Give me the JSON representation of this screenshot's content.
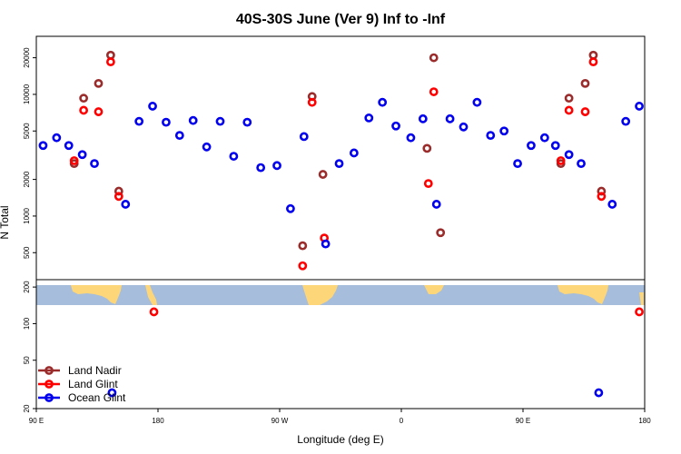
{
  "chart_data": {
    "type": "scatter",
    "title": "40S-30S June (Ver 9)   Inf to -Inf",
    "xlabel": "Longitude (deg E)",
    "ylabel": "N Total",
    "x_ticks": [
      {
        "v": 90,
        "label": "90 E"
      },
      {
        "v": 180,
        "label": "180"
      },
      {
        "v": 270,
        "label": "90 W"
      },
      {
        "v": 360,
        "label": "0"
      },
      {
        "v": 450,
        "label": "90 E"
      },
      {
        "v": 540,
        "label": "180"
      }
    ],
    "xlim": [
      90,
      540
    ],
    "upper_panel": {
      "scale": "log",
      "ylim": [
        300,
        30000
      ],
      "y_ticks": [
        {
          "v": 500,
          "label": "500"
        },
        {
          "v": 1000,
          "label": "1000"
        },
        {
          "v": 2000,
          "label": "2000"
        },
        {
          "v": 5000,
          "label": "5000"
        },
        {
          "v": 10000,
          "label": "10000"
        },
        {
          "v": 20000,
          "label": "20000"
        }
      ]
    },
    "lower_panel": {
      "scale": "log",
      "ylim": [
        20,
        230
      ],
      "y_ticks": [
        {
          "v": 20,
          "label": "20"
        },
        {
          "v": 50,
          "label": "50"
        },
        {
          "v": 100,
          "label": "100"
        },
        {
          "v": 200,
          "label": "200"
        }
      ]
    },
    "legend": {
      "position": "bottom-left",
      "entries": [
        "Land Nadir",
        "Land Glint",
        "Ocean Glint"
      ]
    },
    "series": [
      {
        "name": "Land Nadir",
        "color": "#9b2c2c",
        "points": [
          [
            118,
            2700
          ],
          [
            125,
            9300
          ],
          [
            136,
            12300
          ],
          [
            145,
            21000
          ],
          [
            151,
            1600
          ],
          [
            287,
            570
          ],
          [
            294,
            9600
          ],
          [
            302,
            2200
          ],
          [
            379,
            3600
          ],
          [
            384,
            20000
          ],
          [
            389,
            730
          ],
          [
            478,
            2700
          ],
          [
            484,
            9300
          ],
          [
            496,
            12300
          ],
          [
            502,
            21000
          ],
          [
            508,
            1600
          ]
        ]
      },
      {
        "name": "Land Glint",
        "color": "#ff0000",
        "points": [
          [
            118,
            2850
          ],
          [
            125,
            7400
          ],
          [
            136,
            7200
          ],
          [
            145,
            18500
          ],
          [
            151,
            1450
          ],
          [
            177,
            125
          ],
          [
            287,
            390
          ],
          [
            294,
            8600
          ],
          [
            303,
            660
          ],
          [
            380,
            1850
          ],
          [
            384,
            10500
          ],
          [
            478,
            2850
          ],
          [
            484,
            7400
          ],
          [
            496,
            7200
          ],
          [
            502,
            18500
          ],
          [
            508,
            1450
          ],
          [
            536,
            125
          ]
        ]
      },
      {
        "name": "Ocean Glint",
        "color": "#0000ee",
        "points": [
          [
            95,
            3800
          ],
          [
            105,
            4400
          ],
          [
            114,
            3800
          ],
          [
            124,
            3200
          ],
          [
            133,
            2700
          ],
          [
            146,
            27
          ],
          [
            156,
            1250
          ],
          [
            166,
            6000
          ],
          [
            176,
            8000
          ],
          [
            186,
            5900
          ],
          [
            196,
            4600
          ],
          [
            206,
            6100
          ],
          [
            216,
            3700
          ],
          [
            226,
            6000
          ],
          [
            236,
            3100
          ],
          [
            246,
            5900
          ],
          [
            256,
            2500
          ],
          [
            268,
            2600
          ],
          [
            278,
            1150
          ],
          [
            288,
            4500
          ],
          [
            304,
            590
          ],
          [
            314,
            2700
          ],
          [
            325,
            3300
          ],
          [
            336,
            6400
          ],
          [
            346,
            8600
          ],
          [
            356,
            5500
          ],
          [
            367,
            4400
          ],
          [
            376,
            6300
          ],
          [
            386,
            1250
          ],
          [
            396,
            6300
          ],
          [
            406,
            5400
          ],
          [
            416,
            8600
          ],
          [
            426,
            4600
          ],
          [
            436,
            5000
          ],
          [
            446,
            2700
          ],
          [
            456,
            3800
          ],
          [
            466,
            4400
          ],
          [
            474,
            3800
          ],
          [
            484,
            3200
          ],
          [
            493,
            2700
          ],
          [
            506,
            27
          ],
          [
            516,
            1250
          ],
          [
            526,
            6000
          ],
          [
            536,
            8000
          ]
        ]
      }
    ]
  }
}
